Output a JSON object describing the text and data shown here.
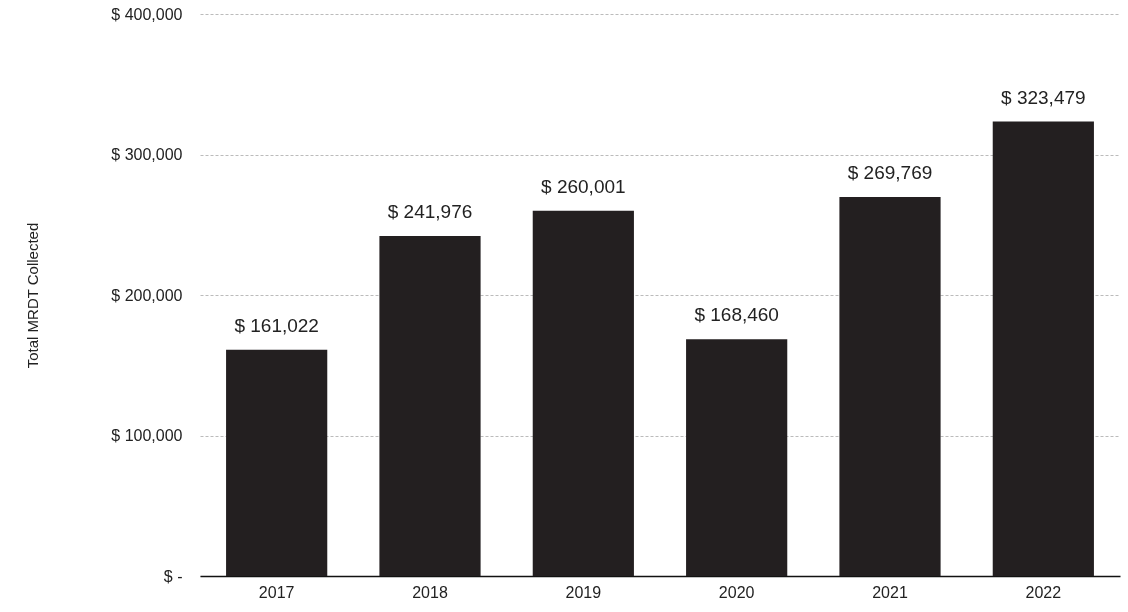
{
  "chart_data": {
    "type": "bar",
    "ylabel": "Total MRDT Collected",
    "categories": [
      "2017",
      "2018",
      "2019",
      "2020",
      "2021",
      "2022"
    ],
    "values": [
      161022,
      241976,
      260001,
      168460,
      269769,
      323479
    ],
    "value_labels": [
      "$ 161,022",
      "$ 241,976",
      "$ 260,001",
      "$ 168,460",
      "$ 269,769",
      "$ 323,479"
    ],
    "color": "#231f20",
    "ylim": [
      0,
      400000
    ],
    "yticks": [
      {
        "value": 0,
        "label": "$ -"
      },
      {
        "value": 100000,
        "label": "$ 100,000"
      },
      {
        "value": 200000,
        "label": "$ 200,000"
      },
      {
        "value": 300000,
        "label": "$ 300,000"
      },
      {
        "value": 400000,
        "label": "$ 400,000"
      }
    ],
    "grid": "y"
  }
}
